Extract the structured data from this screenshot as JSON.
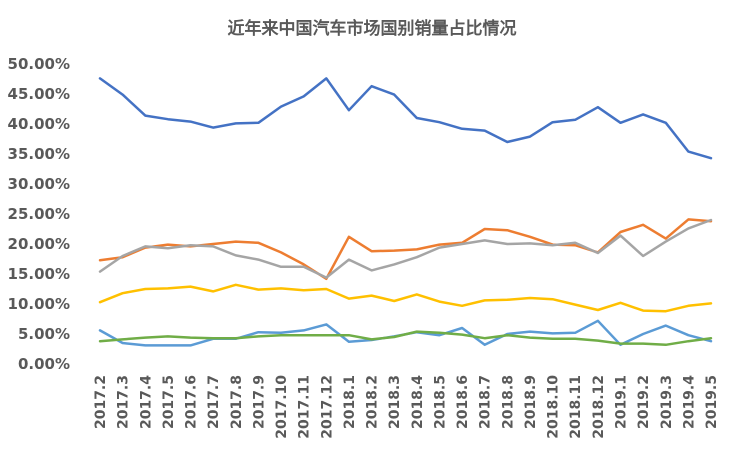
{
  "chart_data": {
    "type": "line",
    "title": "近年来中国汽车市场国别销量占比情况",
    "xlabel": "",
    "ylabel": "",
    "ylim": [
      0,
      50
    ],
    "y_ticks": [
      "0.00%",
      "5.00%",
      "10.00%",
      "15.00%",
      "20.00%",
      "25.00%",
      "30.00%",
      "35.00%",
      "40.00%",
      "45.00%",
      "50.00%"
    ],
    "grid": false,
    "legend": "none",
    "categories": [
      "2017.2",
      "2017.3",
      "2017.4",
      "2017.5",
      "2017.6",
      "2017.7",
      "2017.8",
      "2017.9",
      "2017.10",
      "2017.11",
      "2017.12",
      "2018.1",
      "2018.2",
      "2018.3",
      "2018.4",
      "2018.5",
      "2018.6",
      "2018.7",
      "2018.8",
      "2018.9",
      "2018.10",
      "2018.11",
      "2018.12",
      "2019.1",
      "2019.2",
      "2019.3",
      "2019.4",
      "2019.5"
    ],
    "series": [
      {
        "color": "#4472C4",
        "values": [
          47.6,
          44.9,
          41.4,
          40.8,
          40.4,
          39.4,
          40.1,
          40.2,
          42.9,
          44.6,
          47.6,
          42.3,
          46.3,
          44.9,
          41.0,
          40.3,
          39.2,
          38.9,
          37.0,
          37.9,
          40.3,
          40.7,
          42.8,
          40.2,
          41.6,
          40.2,
          35.4,
          34.3
        ]
      },
      {
        "color": "#ED7D31",
        "values": [
          17.3,
          17.8,
          19.4,
          19.9,
          19.6,
          20.0,
          20.4,
          20.2,
          18.6,
          16.6,
          14.2,
          21.2,
          18.8,
          18.9,
          19.1,
          19.9,
          20.2,
          22.5,
          22.3,
          21.2,
          19.9,
          19.8,
          18.6,
          22.0,
          23.2,
          20.9,
          24.1,
          23.8
        ]
      },
      {
        "color": "#A5A5A5",
        "values": [
          15.4,
          18.0,
          19.6,
          19.3,
          19.8,
          19.6,
          18.1,
          17.4,
          16.2,
          16.2,
          14.4,
          17.4,
          15.6,
          16.6,
          17.8,
          19.4,
          20.0,
          20.6,
          20.0,
          20.1,
          19.8,
          20.2,
          18.5,
          21.4,
          18.0,
          20.4,
          22.6,
          24.0
        ]
      },
      {
        "color": "#FFC000",
        "values": [
          10.3,
          11.8,
          12.5,
          12.6,
          12.9,
          12.1,
          13.2,
          12.4,
          12.6,
          12.3,
          12.5,
          10.9,
          11.4,
          10.5,
          11.6,
          10.4,
          9.7,
          10.6,
          10.7,
          11.0,
          10.8,
          9.9,
          9.0,
          10.2,
          8.9,
          8.8,
          9.7,
          10.1
        ]
      },
      {
        "color": "#5B9BD5",
        "values": [
          5.6,
          3.5,
          3.1,
          3.1,
          3.1,
          4.2,
          4.2,
          5.3,
          5.2,
          5.6,
          6.6,
          3.7,
          4.0,
          4.6,
          5.3,
          4.8,
          6.0,
          3.2,
          5.0,
          5.4,
          5.1,
          5.2,
          7.2,
          3.2,
          5.0,
          6.4,
          4.8,
          3.8
        ]
      },
      {
        "color": "#70AD47",
        "values": [
          3.8,
          4.1,
          4.4,
          4.6,
          4.4,
          4.3,
          4.3,
          4.6,
          4.8,
          4.8,
          4.8,
          4.8,
          4.1,
          4.5,
          5.4,
          5.2,
          4.9,
          4.3,
          4.8,
          4.4,
          4.2,
          4.2,
          3.9,
          3.4,
          3.4,
          3.2,
          3.8,
          4.3
        ]
      }
    ]
  }
}
